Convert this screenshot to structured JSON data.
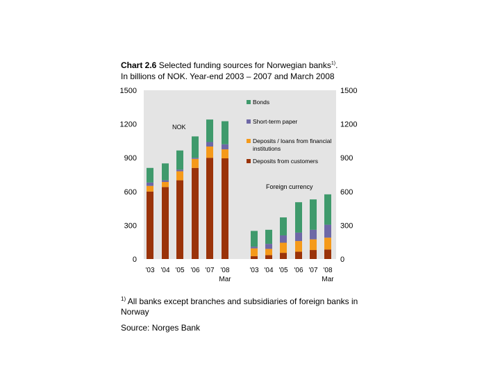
{
  "title": {
    "bold": "Chart 2.6",
    "text": " Selected funding sources for Norwegian banks",
    "sup": "1)",
    "end": ".",
    "line2": "In billions of NOK. Year-end 2003 – 2007 and March 2008"
  },
  "footnote": {
    "sup": "1)",
    "text": " All banks except branches and subsidiaries of foreign banks in Norway"
  },
  "source": "Source: Norges Bank",
  "colors": {
    "customers": "#9a3309",
    "institutions": "#f59a1a",
    "paper": "#6e68a6",
    "bonds": "#3f9a6c",
    "plot_bg": "#e4e4e4"
  },
  "chart_data": {
    "type": "bar",
    "stacked": true,
    "ylim": [
      0,
      1500
    ],
    "yticks": [
      "0",
      "300",
      "600",
      "900",
      "1200",
      "1500"
    ],
    "grid": false,
    "legend_position": "top-right",
    "legend": [
      {
        "key": "bonds",
        "label": "Bonds"
      },
      {
        "key": "paper",
        "label": "Short-term paper"
      },
      {
        "key": "institutions",
        "label": "Deposits / loans from financial institutions"
      },
      {
        "key": "customers",
        "label": "Deposits from customers"
      }
    ],
    "annotations": {
      "nok": "NOK",
      "foreign": "Foreign currency"
    },
    "groups": [
      {
        "name": "NOK",
        "categories": [
          "'03",
          "'04",
          "'05",
          "'06",
          "'07",
          "'08"
        ],
        "category_sublabels": [
          "",
          "",
          "",
          "",
          "",
          "Mar"
        ],
        "series": [
          {
            "key": "customers",
            "name": "Deposits from customers",
            "values": [
              600,
              640,
              700,
              810,
              900,
              895
            ]
          },
          {
            "key": "institutions",
            "name": "Deposits / loans from financial institutions",
            "values": [
              50,
              45,
              80,
              80,
              100,
              80
            ]
          },
          {
            "key": "paper",
            "name": "Short-term paper",
            "values": [
              30,
              15,
              15,
              10,
              40,
              45
            ]
          },
          {
            "key": "bonds",
            "name": "Bonds",
            "values": [
              130,
              150,
              170,
              190,
              200,
              205
            ]
          }
        ]
      },
      {
        "name": "Foreign currency",
        "categories": [
          "'03",
          "'04",
          "'05",
          "'06",
          "'07",
          "'08"
        ],
        "category_sublabels": [
          "",
          "",
          "",
          "",
          "",
          "Mar"
        ],
        "series": [
          {
            "key": "customers",
            "name": "Deposits from customers",
            "values": [
              25,
              35,
              55,
              65,
              80,
              85
            ]
          },
          {
            "key": "institutions",
            "name": "Deposits / loans from financial institutions",
            "values": [
              70,
              55,
              90,
              95,
              95,
              105
            ]
          },
          {
            "key": "paper",
            "name": "Short-term paper",
            "values": [
              15,
              45,
              65,
              75,
              85,
              115
            ]
          },
          {
            "key": "bonds",
            "name": "Bonds",
            "values": [
              140,
              125,
              160,
              270,
              270,
              270
            ]
          }
        ]
      }
    ]
  }
}
